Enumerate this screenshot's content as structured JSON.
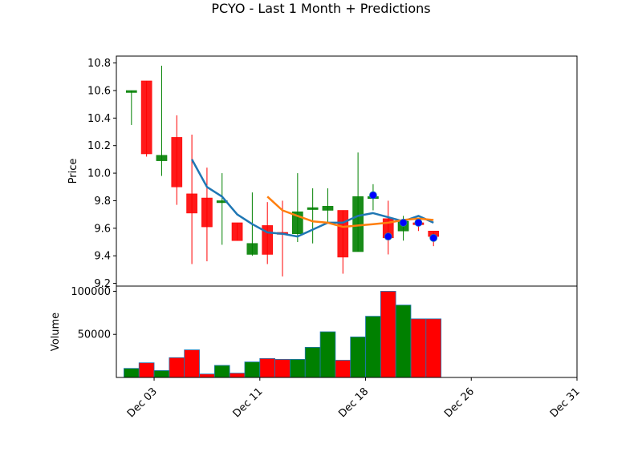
{
  "chart_data": {
    "type": "candlestick",
    "title": "PCYO - Last 1 Month + Predictions",
    "colors": {
      "up": "#008000",
      "down": "#ff0000",
      "ma_short": "#1f77b4",
      "ma_long": "#ff7f0e",
      "prediction": "#0000ff"
    },
    "price_panel": {
      "ylabel": "Price",
      "ylim": [
        9.18,
        10.85
      ],
      "yticks": [
        9.2,
        9.4,
        9.6,
        9.8,
        10.0,
        10.2,
        10.4,
        10.6,
        10.8
      ],
      "ytick_labels": [
        "9.2",
        "9.4",
        "9.6",
        "9.8",
        "10.0",
        "10.2",
        "10.4",
        "10.6",
        "10.8"
      ]
    },
    "volume_panel": {
      "ylabel": "Volume",
      "ylim": [
        0,
        106000
      ],
      "yticks": [
        50000,
        100000
      ],
      "ytick_labels": [
        "50000",
        "100000"
      ]
    },
    "xaxis": {
      "range": [
        "2024-12-01T12:00",
        "2025-01-01T00:00"
      ],
      "ticks": [
        {
          "date": "2024-12-04",
          "label": "Dec 03"
        },
        {
          "date": "2024-12-11",
          "label": "Dec 11"
        },
        {
          "date": "2024-12-18",
          "label": "Dec 18"
        },
        {
          "date": "2024-12-25",
          "label": "Dec 26"
        },
        {
          "date": "2025-01-01",
          "label": "Dec 31"
        }
      ]
    },
    "candles": [
      {
        "date": "2024-12-02T12:00",
        "open": 10.59,
        "high": 10.6,
        "low": 10.35,
        "close": 10.6,
        "volume": 10500
      },
      {
        "date": "2024-12-03T12:00",
        "open": 10.67,
        "high": 10.67,
        "low": 10.12,
        "close": 10.14,
        "volume": 17000
      },
      {
        "date": "2024-12-04T12:00",
        "open": 10.09,
        "high": 10.78,
        "low": 9.98,
        "close": 10.13,
        "volume": 8000
      },
      {
        "date": "2024-12-05T12:00",
        "open": 10.26,
        "high": 10.42,
        "low": 9.77,
        "close": 9.9,
        "volume": 23000
      },
      {
        "date": "2024-12-06T12:00",
        "open": 9.85,
        "high": 10.28,
        "low": 9.34,
        "close": 9.71,
        "volume": 32000
      },
      {
        "date": "2024-12-07T12:00",
        "open": 9.82,
        "high": 10.04,
        "low": 9.36,
        "close": 9.61,
        "volume": 4000
      },
      {
        "date": "2024-12-08T12:00",
        "open": 9.79,
        "high": 10.0,
        "low": 9.48,
        "close": 9.8,
        "volume": 14000
      },
      {
        "date": "2024-12-09T12:00",
        "open": 9.64,
        "high": 9.64,
        "low": 9.51,
        "close": 9.51,
        "volume": 5000
      },
      {
        "date": "2024-12-10T12:00",
        "open": 9.41,
        "high": 9.86,
        "low": 9.4,
        "close": 9.49,
        "volume": 18000
      },
      {
        "date": "2024-12-11T12:00",
        "open": 9.62,
        "high": 9.79,
        "low": 9.34,
        "close": 9.41,
        "volume": 22000
      },
      {
        "date": "2024-12-12T12:00",
        "open": 9.57,
        "high": 9.8,
        "low": 9.25,
        "close": 9.56,
        "volume": 21000
      },
      {
        "date": "2024-12-13T12:00",
        "open": 9.56,
        "high": 10.0,
        "low": 9.5,
        "close": 9.72,
        "volume": 21000
      },
      {
        "date": "2024-12-14T12:00",
        "open": 9.75,
        "high": 9.89,
        "low": 9.49,
        "close": 9.75,
        "volume": 35000
      },
      {
        "date": "2024-12-15T12:00",
        "open": 9.73,
        "high": 9.89,
        "low": 9.64,
        "close": 9.76,
        "volume": 53000
      },
      {
        "date": "2024-12-16T12:00",
        "open": 9.73,
        "high": 9.73,
        "low": 9.27,
        "close": 9.39,
        "volume": 20000
      },
      {
        "date": "2024-12-17T12:00",
        "open": 9.43,
        "high": 10.15,
        "low": 9.43,
        "close": 9.83,
        "volume": 47000
      },
      {
        "date": "2024-12-18T12:00",
        "open": 9.83,
        "high": 9.92,
        "low": 9.73,
        "close": 9.83,
        "volume": 71000
      },
      {
        "date": "2024-12-19T12:00",
        "open": 9.67,
        "high": 9.8,
        "low": 9.41,
        "close": 9.53,
        "volume": 100000
      },
      {
        "date": "2024-12-20T12:00",
        "open": 9.58,
        "high": 9.69,
        "low": 9.51,
        "close": 9.65,
        "volume": 84000
      },
      {
        "date": "2024-12-21T12:00",
        "open": 9.64,
        "high": 9.67,
        "low": 9.58,
        "close": 9.63,
        "volume": 68000
      },
      {
        "date": "2024-12-22T12:00",
        "open": 9.58,
        "high": 9.58,
        "low": 9.47,
        "close": 9.54,
        "volume": 68000
      }
    ],
    "series": [
      {
        "role": "ma_short",
        "points": [
          {
            "date": "2024-12-06T12:00",
            "value": 10.1
          },
          {
            "date": "2024-12-07T12:00",
            "value": 9.9
          },
          {
            "date": "2024-12-08T12:00",
            "value": 9.83
          },
          {
            "date": "2024-12-09T12:00",
            "value": 9.7
          },
          {
            "date": "2024-12-10T12:00",
            "value": 9.63
          },
          {
            "date": "2024-12-11T12:00",
            "value": 9.57
          },
          {
            "date": "2024-12-12T12:00",
            "value": 9.56
          },
          {
            "date": "2024-12-13T12:00",
            "value": 9.54
          },
          {
            "date": "2024-12-14T12:00",
            "value": 9.59
          },
          {
            "date": "2024-12-15T12:00",
            "value": 9.64
          },
          {
            "date": "2024-12-16T12:00",
            "value": 9.64
          },
          {
            "date": "2024-12-17T12:00",
            "value": 9.69
          },
          {
            "date": "2024-12-18T12:00",
            "value": 9.71
          },
          {
            "date": "2024-12-19T12:00",
            "value": 9.68
          },
          {
            "date": "2024-12-20T12:00",
            "value": 9.65
          },
          {
            "date": "2024-12-21T12:00",
            "value": 9.69
          },
          {
            "date": "2024-12-22T12:00",
            "value": 9.64
          }
        ]
      },
      {
        "role": "ma_long",
        "points": [
          {
            "date": "2024-12-11T12:00",
            "value": 9.83
          },
          {
            "date": "2024-12-12T12:00",
            "value": 9.73
          },
          {
            "date": "2024-12-13T12:00",
            "value": 9.69
          },
          {
            "date": "2024-12-14T12:00",
            "value": 9.65
          },
          {
            "date": "2024-12-15T12:00",
            "value": 9.64
          },
          {
            "date": "2024-12-16T12:00",
            "value": 9.61
          },
          {
            "date": "2024-12-17T12:00",
            "value": 9.62
          },
          {
            "date": "2024-12-18T12:00",
            "value": 9.63
          },
          {
            "date": "2024-12-19T12:00",
            "value": 9.64
          },
          {
            "date": "2024-12-20T12:00",
            "value": 9.66
          },
          {
            "date": "2024-12-21T12:00",
            "value": 9.67
          },
          {
            "date": "2024-12-22T12:00",
            "value": 9.66
          }
        ]
      }
    ],
    "predictions": [
      {
        "date": "2024-12-18T12:00",
        "value": 9.84
      },
      {
        "date": "2024-12-19T12:00",
        "value": 9.54
      },
      {
        "date": "2024-12-20T12:00",
        "value": 9.64
      },
      {
        "date": "2024-12-21T12:00",
        "value": 9.64
      },
      {
        "date": "2024-12-22T12:00",
        "value": 9.53
      }
    ]
  }
}
